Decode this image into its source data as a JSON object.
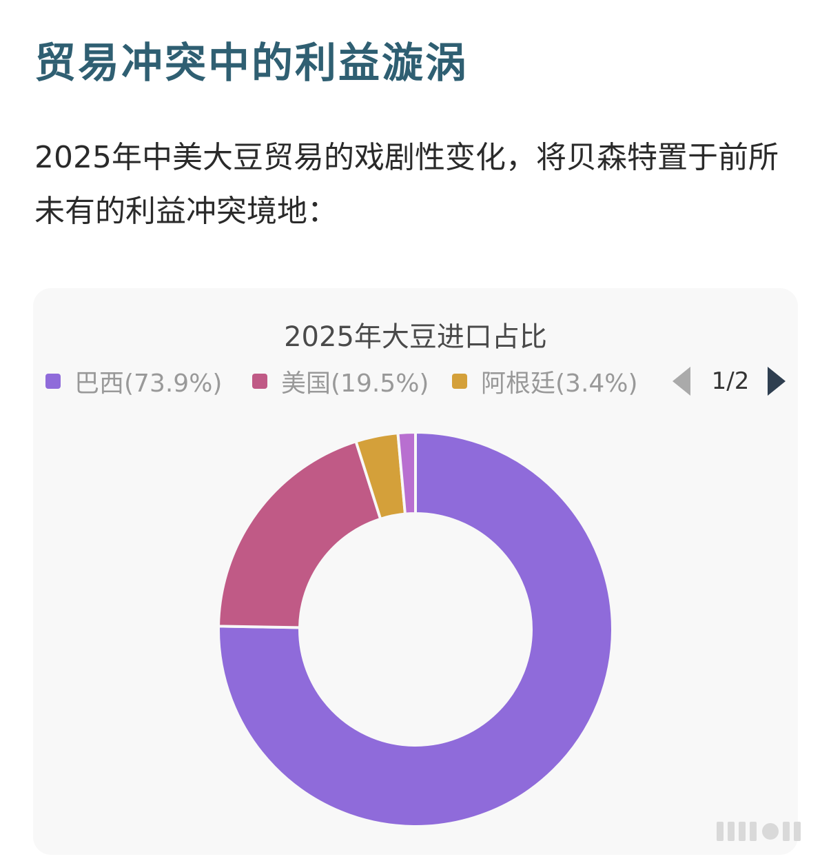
{
  "article": {
    "title": "贸易冲突中的利益漩涡",
    "intro": "2025年中美大豆贸易的戏剧性变化，将贝森特置于前所未有的利益冲突境地："
  },
  "legend": {
    "items": [
      {
        "label": "巴西(73.9%)",
        "color": "#8f6bda"
      },
      {
        "label": "美国(19.5%)",
        "color": "#c05a86"
      },
      {
        "label": "阿根廷(3.4%)",
        "color": "#d4a03a"
      }
    ],
    "page": "1/2",
    "prev_icon": "triangle-left-icon",
    "next_icon": "triangle-right-icon",
    "prev_color": "#aaaaaa",
    "next_color": "#2f3f50"
  },
  "chart_data": {
    "type": "pie",
    "title": "2025年大豆进口占比",
    "donut": true,
    "legend_position": "top",
    "slices": [
      {
        "name": "巴西",
        "value": 73.9,
        "color": "#8f6bda"
      },
      {
        "name": "美国",
        "value": 19.5,
        "color": "#c05a86"
      },
      {
        "name": "阿根廷",
        "value": 3.4,
        "color": "#d4a03a"
      },
      {
        "name": "",
        "value": 1.4,
        "color": "#b86fd0"
      }
    ]
  }
}
